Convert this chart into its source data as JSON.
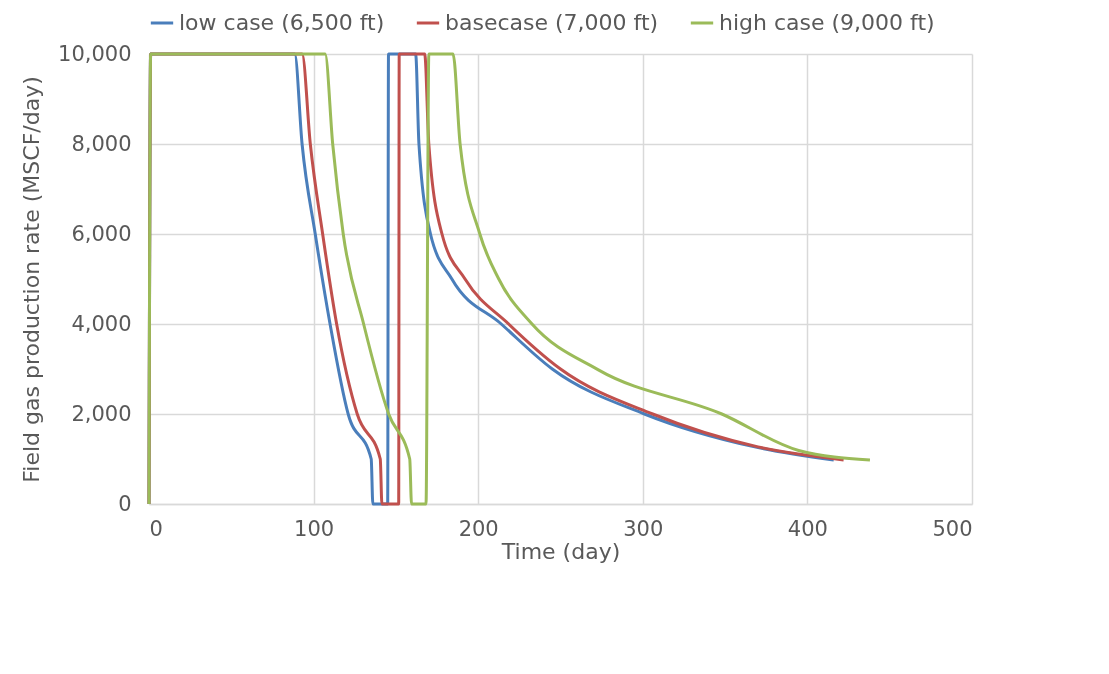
{
  "chart_data": {
    "type": "line",
    "xlabel": "Time (day)",
    "ylabel": "Field gas production rate (MSCF/day)",
    "xlim": [
      0,
      500
    ],
    "xticks": [
      0,
      100,
      200,
      300,
      400,
      500
    ],
    "ylim": [
      0,
      10000
    ],
    "yticks": [
      0,
      {
        "value": 2000,
        "label": "2,000"
      },
      {
        "value": 4000,
        "label": "4,000"
      },
      {
        "value": 6000,
        "label": "6,000"
      },
      {
        "value": 8000,
        "label": "8,000"
      },
      {
        "value": 10000,
        "label": "10,000"
      }
    ],
    "grid": true,
    "legend": "top",
    "line_style": "solid",
    "marker": "none",
    "series": [
      {
        "name": "low case (6,500 ft)",
        "color": "#4a7ebb",
        "x": [
          0,
          1,
          88.5,
          93,
          101,
          110,
          121,
          135,
          136,
          145,
          145.5,
          162,
          164,
          171,
          184,
          214,
          245,
          301,
          368,
          416
        ],
        "values": [
          0,
          10000,
          10000,
          8000,
          6000,
          4000,
          2000,
          1000,
          0,
          0,
          10000,
          10000,
          8000,
          6000,
          5000,
          4000,
          3000,
          2000,
          1270,
          980
        ]
      },
      {
        "name": "basecase (7,000 ft)",
        "color": "#c0504d",
        "x": [
          0,
          1,
          93,
          98,
          105.5,
          114,
          126.5,
          140.5,
          141.5,
          151.7,
          152,
          167.5,
          170,
          178,
          192,
          218.5,
          250,
          306,
          370,
          422
        ],
        "values": [
          0,
          10000,
          10000,
          8000,
          6000,
          4000,
          2000,
          1000,
          0,
          0,
          10000,
          10000,
          8000,
          6000,
          5000,
          4000,
          3000,
          2000,
          1270,
          980
        ]
      },
      {
        "name": "high case (9,000 ft)",
        "color": "#9bbb59",
        "x": [
          0,
          1,
          107,
          111.6,
          118,
          130.4,
          145.6,
          158.4,
          159.5,
          168.3,
          170,
          184.7,
          189,
          201,
          212.5,
          232.7,
          273,
          348,
          394.7,
          438
        ],
        "values": [
          0,
          10000,
          10000,
          8000,
          6000,
          4000,
          2000,
          1000,
          0,
          0,
          10000,
          10000,
          8000,
          6000,
          5000,
          4000,
          2980,
          2000,
          1190,
          980
        ]
      }
    ]
  }
}
